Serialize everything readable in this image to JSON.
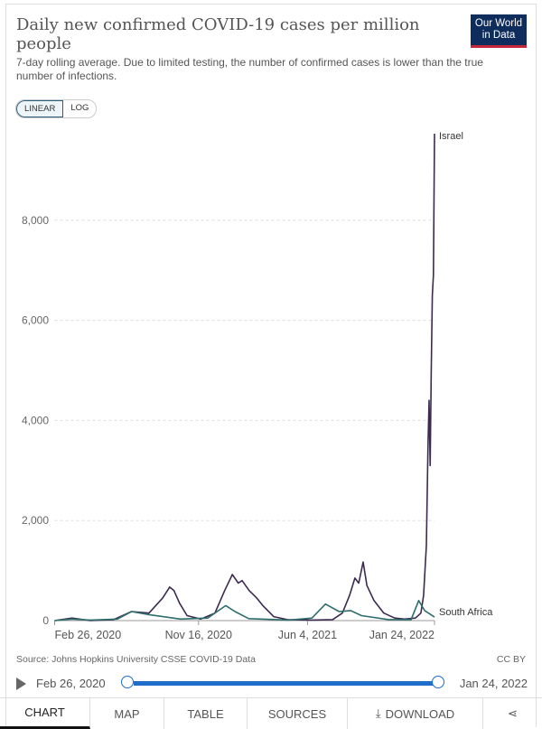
{
  "header": {
    "title": "Daily new confirmed COVID-19 cases per million people",
    "subtitle": "7-day rolling average. Due to limited testing, the number of confirmed cases is lower than the true number of infections.",
    "logo_line1": "Our World",
    "logo_line2": "in Data"
  },
  "scale_toggle": {
    "linear": "LINEAR",
    "log": "LOG",
    "selected": "LINEAR"
  },
  "chart_data": {
    "type": "line",
    "title": "Daily new confirmed COVID-19 cases per million people",
    "xlabel": "",
    "ylabel": "",
    "x_unit": "days since Feb 26, 2020",
    "xlim": [
      0,
      697
    ],
    "ylim": [
      0,
      9800
    ],
    "yticks": [
      0,
      2000,
      4000,
      6000,
      8000
    ],
    "ytick_labels": [
      "0",
      "2,000",
      "4,000",
      "6,000",
      "8,000"
    ],
    "xticks": [
      0,
      264,
      464,
      697
    ],
    "xtick_labels": [
      "Feb 26, 2020",
      "Nov 16, 2020",
      "Jun 4, 2021",
      "Jan 24, 2022"
    ],
    "grid": true,
    "series": [
      {
        "name": "Israel",
        "color": "#3d2a4f",
        "points": [
          [
            0,
            0
          ],
          [
            32,
            50
          ],
          [
            65,
            0
          ],
          [
            108,
            20
          ],
          [
            141,
            180
          ],
          [
            173,
            150
          ],
          [
            198,
            450
          ],
          [
            211,
            670
          ],
          [
            219,
            600
          ],
          [
            229,
            350
          ],
          [
            243,
            100
          ],
          [
            268,
            30
          ],
          [
            294,
            150
          ],
          [
            312,
            600
          ],
          [
            326,
            920
          ],
          [
            337,
            750
          ],
          [
            344,
            800
          ],
          [
            357,
            600
          ],
          [
            371,
            450
          ],
          [
            382,
            300
          ],
          [
            402,
            80
          ],
          [
            427,
            20
          ],
          [
            472,
            10
          ],
          [
            510,
            20
          ],
          [
            528,
            150
          ],
          [
            541,
            500
          ],
          [
            551,
            850
          ],
          [
            558,
            750
          ],
          [
            566,
            1170
          ],
          [
            573,
            700
          ],
          [
            586,
            400
          ],
          [
            604,
            150
          ],
          [
            624,
            50
          ],
          [
            642,
            30
          ],
          [
            662,
            50
          ],
          [
            672,
            150
          ],
          [
            677,
            500
          ],
          [
            682,
            1500
          ],
          [
            685,
            3500
          ],
          [
            687,
            4400
          ],
          [
            689,
            3100
          ],
          [
            691,
            5000
          ],
          [
            693,
            6500
          ],
          [
            695,
            6900
          ],
          [
            697,
            9730
          ]
        ]
      },
      {
        "name": "South Africa",
        "color": "#2e6e6c",
        "points": [
          [
            0,
            0
          ],
          [
            32,
            30
          ],
          [
            65,
            10
          ],
          [
            115,
            30
          ],
          [
            141,
            180
          ],
          [
            173,
            120
          ],
          [
            231,
            30
          ],
          [
            281,
            50
          ],
          [
            314,
            300
          ],
          [
            331,
            180
          ],
          [
            356,
            40
          ],
          [
            430,
            10
          ],
          [
            472,
            50
          ],
          [
            497,
            330
          ],
          [
            522,
            180
          ],
          [
            543,
            200
          ],
          [
            563,
            100
          ],
          [
            613,
            20
          ],
          [
            654,
            20
          ],
          [
            668,
            400
          ],
          [
            679,
            200
          ],
          [
            697,
            70
          ]
        ]
      }
    ]
  },
  "footer": {
    "source": "Source: Johns Hopkins University CSSE COVID-19 Data",
    "license": "CC BY"
  },
  "timeline": {
    "start": "Feb 26, 2020",
    "end": "Jan 24, 2022"
  },
  "tabs": [
    "CHART",
    "MAP",
    "TABLE",
    "SOURCES",
    "DOWNLOAD"
  ],
  "icons": {
    "download": "download-icon",
    "share": "share-icon",
    "play": "play-icon"
  }
}
